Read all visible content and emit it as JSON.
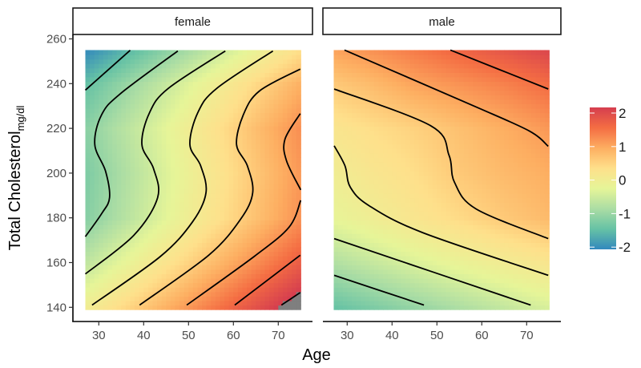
{
  "chart_data": {
    "type": "heatmap",
    "xlabel": "Age",
    "ylabel": "Total Cholesterol",
    "ylabel_subscript": "mg/dl",
    "xlim": [
      27,
      75
    ],
    "ylim": [
      139,
      255
    ],
    "x_ticks": [
      "30",
      "40",
      "50",
      "60",
      "70"
    ],
    "y_ticks": [
      "140",
      "160",
      "180",
      "200",
      "220",
      "240",
      "260"
    ],
    "legend": {
      "placement": "right",
      "range": [
        -2,
        2
      ],
      "ticks": [
        "2",
        "1",
        "0",
        "-1",
        "-2"
      ],
      "colors": [
        "#3288BD",
        "#66C2A5",
        "#ABDDA4",
        "#E6F598",
        "#FEE08B",
        "#FDAE61",
        "#F46D43",
        "#D53E4F"
      ],
      "na_color": "#7F7F7F"
    },
    "grid_ages": [
      27,
      35,
      45,
      55,
      65,
      75
    ],
    "grid_chol": [
      140,
      160,
      180,
      200,
      220,
      240,
      255
    ],
    "panels": [
      {
        "label": "female",
        "values": [
          [
            -0.05,
            0.33,
            0.81,
            1.29,
            1.76,
            2.24
          ],
          [
            -0.67,
            -0.29,
            0.19,
            0.67,
            1.14,
            1.62
          ],
          [
            -1.17,
            -0.79,
            -0.31,
            0.17,
            0.64,
            1.12
          ],
          [
            -1.24,
            -0.86,
            -0.38,
            0.1,
            0.57,
            1.05
          ],
          [
            -1.14,
            -0.76,
            -0.29,
            0.19,
            0.67,
            1.14
          ],
          [
            -1.45,
            -1.07,
            -0.6,
            -0.12,
            0.36,
            0.83
          ],
          [
            -1.99,
            -1.61,
            -1.13,
            -0.66,
            -0.18,
            0.3
          ]
        ],
        "contours": [
          {
            "level": -1.5,
            "points": [
              [
                27,
                237.1
              ],
              [
                37,
                254.9
              ]
            ]
          },
          {
            "level": -1,
            "points": [
              [
                27,
                171.6
              ],
              [
                30.6,
                181.8
              ],
              [
                32.4,
                189
              ],
              [
                31.5,
                200.9
              ],
              [
                29.1,
                212.8
              ],
              [
                30.6,
                226
              ],
              [
                34.8,
                235.5
              ],
              [
                47.6,
                254.6
              ]
            ]
          },
          {
            "level": -0.5,
            "points": [
              [
                27,
                154.9
              ],
              [
                37.8,
                172.2
              ],
              [
                43.1,
                189
              ],
              [
                42.2,
                202
              ],
              [
                39.6,
                212.8
              ],
              [
                41.3,
                227
              ],
              [
                45.5,
                237.9
              ],
              [
                58.2,
                254.6
              ]
            ]
          },
          {
            "level": 0,
            "points": [
              [
                28.5,
                141
              ],
              [
                43.7,
                162.7
              ],
              [
                50.9,
                178.2
              ],
              [
                53.9,
                191.3
              ],
              [
                52.7,
                203.3
              ],
              [
                50.3,
                212.8
              ],
              [
                52.1,
                227.2
              ],
              [
                56.3,
                237.9
              ],
              [
                68.8,
                254.6
              ]
            ]
          },
          {
            "level": 0.5,
            "points": [
              [
                39.1,
                141
              ],
              [
                54.5,
                163.3
              ],
              [
                61.6,
                179.4
              ],
              [
                64.3,
                191.3
              ],
              [
                63.1,
                203.3
              ],
              [
                60.7,
                212.8
              ],
              [
                62.2,
                226
              ],
              [
                65.8,
                236.7
              ],
              [
                74.9,
                246.5
              ]
            ]
          },
          {
            "level": 1,
            "points": [
              [
                49.6,
                141
              ],
              [
                64.6,
                162.7
              ],
              [
                72.4,
                175.8
              ],
              [
                75,
                187.8
              ]
            ]
          },
          {
            "level": 1,
            "points": [
              [
                74.9,
                226.6
              ],
              [
                71.5,
                215.2
              ],
              [
                71.8,
                205.7
              ],
              [
                75,
                192.5
              ]
            ]
          },
          {
            "level": 1.5,
            "points": [
              [
                60.3,
                141
              ],
              [
                74.9,
                163.3
              ]
            ]
          },
          {
            "level": 2,
            "points": [
              [
                70.7,
                141
              ],
              [
                74.9,
                146.6
              ]
            ]
          }
        ]
      },
      {
        "label": "male",
        "values": [
          [
            -1.42,
            -1.25,
            -1.04,
            -0.83,
            -0.62,
            -0.42
          ],
          [
            -0.8,
            -0.62,
            -0.4,
            -0.2,
            -0.02,
            0.15
          ],
          [
            -0.25,
            -0.08,
            0.15,
            0.35,
            0.55,
            0.72
          ],
          [
            -0.05,
            0.12,
            0.3,
            0.55,
            0.72,
            0.85
          ],
          [
            0.15,
            0.3,
            0.45,
            0.65,
            0.85,
            1.05
          ],
          [
            0.55,
            0.7,
            0.95,
            1.1,
            1.25,
            1.45
          ],
          [
            0.95,
            1.1,
            1.3,
            1.52,
            1.7,
            1.9
          ]
        ],
        "contours": [
          {
            "level": 1.5,
            "points": [
              [
                53,
                255
              ],
              [
                74.8,
                237.6
              ]
            ]
          },
          {
            "level": 1,
            "points": [
              [
                29.4,
                255
              ],
              [
                58.7,
                229.6
              ],
              [
                70.6,
                218.8
              ],
              [
                74.8,
                212
              ]
            ]
          },
          {
            "level": 0.5,
            "points": [
              [
                27.1,
                237.6
              ],
              [
                48.6,
                221.2
              ],
              [
                52.7,
                208
              ],
              [
                53.9,
                196
              ],
              [
                58.7,
                184
              ],
              [
                74.8,
                170.7
              ]
            ]
          },
          {
            "level": 0,
            "points": [
              [
                27.1,
                212.2
              ],
              [
                29.5,
                203.3
              ],
              [
                30.7,
                193.7
              ],
              [
                34.9,
                185.4
              ],
              [
                46.8,
                173.4
              ],
              [
                74.8,
                154.3
              ]
            ]
          },
          {
            "level": -0.5,
            "points": [
              [
                27.1,
                170.7
              ],
              [
                70.9,
                141
              ]
            ]
          },
          {
            "level": -1,
            "points": [
              [
                27.1,
                154.3
              ],
              [
                47.1,
                141
              ]
            ]
          }
        ]
      }
    ]
  }
}
